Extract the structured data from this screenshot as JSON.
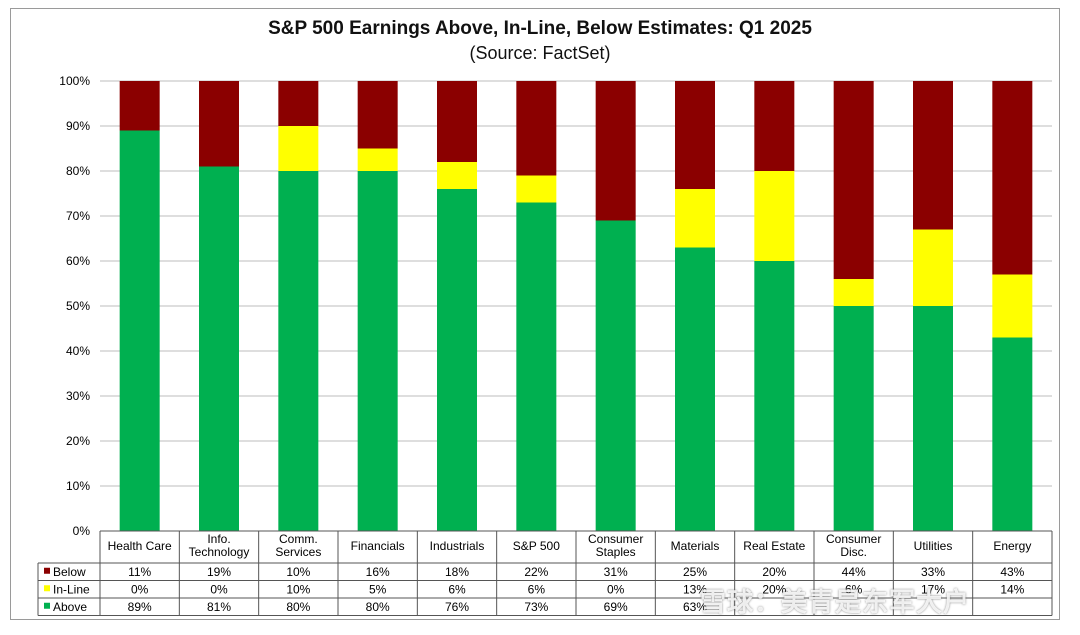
{
  "chart_data": {
    "type": "bar",
    "stacked": true,
    "title": "S&P 500 Earnings Above, In-Line, Below Estimates: Q1 2025",
    "subtitle": "(Source: FactSet)",
    "ylim": [
      0,
      100
    ],
    "yticks": [
      "0%",
      "10%",
      "20%",
      "30%",
      "40%",
      "50%",
      "60%",
      "70%",
      "80%",
      "90%",
      "100%"
    ],
    "grid": true,
    "categories": [
      [
        "Health Care"
      ],
      [
        "Info.",
        "Technology"
      ],
      [
        "Comm.",
        "Services"
      ],
      [
        "Financials"
      ],
      [
        "Industrials"
      ],
      [
        "S&P 500"
      ],
      [
        "Consumer",
        "Staples"
      ],
      [
        "Materials"
      ],
      [
        "Real Estate"
      ],
      [
        "Consumer",
        "Disc."
      ],
      [
        "Utilities"
      ],
      [
        "Energy"
      ]
    ],
    "series": [
      {
        "name": "Above",
        "color": "#00b050",
        "values": [
          89,
          81,
          80,
          80,
          76,
          73,
          69,
          63,
          60,
          50,
          50,
          43
        ],
        "labels": [
          "89%",
          "81%",
          "80%",
          "80%",
          "76%",
          "73%",
          "69%",
          "63%",
          "",
          "",
          "",
          ""
        ]
      },
      {
        "name": "In-Line",
        "color": "#ffff00",
        "values": [
          0,
          0,
          10,
          5,
          6,
          6,
          0,
          13,
          20,
          6,
          17,
          14
        ],
        "labels": [
          "0%",
          "0%",
          "10%",
          "5%",
          "6%",
          "6%",
          "0%",
          "13%",
          "20%",
          "6%",
          "17%",
          "14%"
        ]
      },
      {
        "name": "Below",
        "color": "#8b0000",
        "values": [
          11,
          19,
          10,
          16,
          18,
          22,
          31,
          25,
          20,
          44,
          33,
          43
        ],
        "labels": [
          "11%",
          "19%",
          "10%",
          "16%",
          "18%",
          "22%",
          "31%",
          "25%",
          "20%",
          "44%",
          "33%",
          "43%"
        ]
      }
    ],
    "table_rows": [
      "Below",
      "In-Line",
      "Above"
    ]
  },
  "watermark": "雪球：美青是东军大户"
}
